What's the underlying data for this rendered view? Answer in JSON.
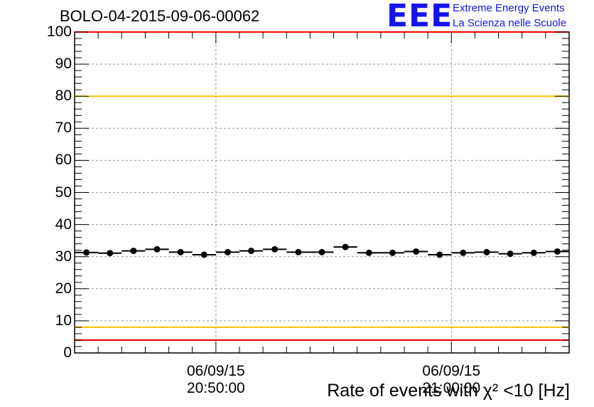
{
  "title": "BOLO-04-2015-09-06-00062",
  "logo": {
    "mark": "EEE",
    "line1": "Extreme Energy Events",
    "line2": "La Scienza nelle Scuole",
    "color": "#1515f0"
  },
  "chart_data": {
    "type": "scatter",
    "title": "BOLO-04-2015-09-06-00062",
    "xlabel": "Rate of events with χ² <10 [Hz]",
    "ylabel": "",
    "ylim": [
      0,
      100
    ],
    "yticks": [
      0,
      10,
      20,
      30,
      40,
      50,
      60,
      70,
      80,
      90,
      100
    ],
    "ytick_labels": [
      "0",
      "10",
      "20",
      "30",
      "40",
      "50",
      "60",
      "70",
      "80",
      "90",
      "100"
    ],
    "xlim": [
      0,
      21
    ],
    "xticks": [
      {
        "at": 6,
        "date": "06/09/15",
        "time": "20:50:00"
      },
      {
        "at": 16,
        "date": "06/09/15",
        "time": "21:00:00"
      }
    ],
    "grid": true,
    "x": [
      0.5,
      1.5,
      2.5,
      3.5,
      4.5,
      5.5,
      6.5,
      7.5,
      8.5,
      9.5,
      10.5,
      11.5,
      12.5,
      13.5,
      14.5,
      15.5,
      16.5,
      17.5,
      18.5,
      19.5,
      20.5
    ],
    "values": [
      31.3,
      31.1,
      31.8,
      32.3,
      31.4,
      30.6,
      31.4,
      31.8,
      32.3,
      31.4,
      31.4,
      33.0,
      31.2,
      31.2,
      31.6,
      30.6,
      31.2,
      31.4,
      30.9,
      31.2,
      31.6
    ],
    "errors": [
      0.5,
      0.5,
      0.5,
      0.5,
      0.5,
      0.5,
      0.5,
      0.5,
      0.5,
      0.5,
      0.5,
      0.5,
      0.5,
      0.5,
      0.5,
      0.5,
      0.5,
      0.5,
      0.5,
      0.5,
      0.5
    ],
    "reference_lines": [
      {
        "value": 100,
        "color": "#ff0000"
      },
      {
        "value": 80,
        "color": "#f2c300"
      },
      {
        "value": 8,
        "color": "#f2c300"
      },
      {
        "value": 4,
        "color": "#ff0000"
      }
    ]
  }
}
